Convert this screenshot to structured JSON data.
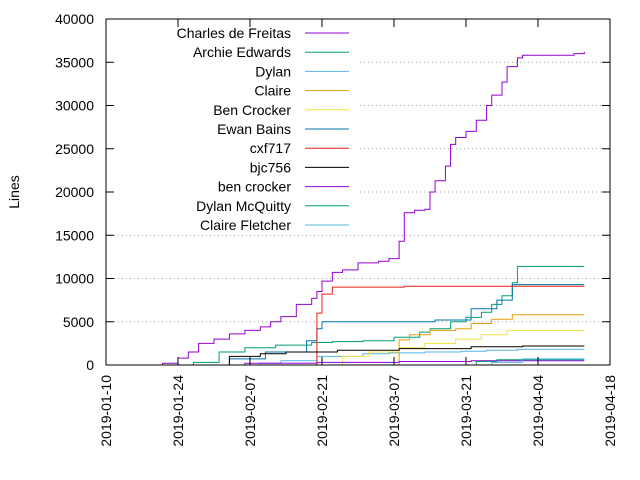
{
  "chart_data": {
    "type": "line",
    "step": true,
    "ylabel": "Lines",
    "xlabel": "",
    "ylim": [
      0,
      40000
    ],
    "xlim": [
      "2019-01-10",
      "2019-04-18"
    ],
    "y_ticks": [
      0,
      5000,
      10000,
      15000,
      20000,
      25000,
      30000,
      35000,
      40000
    ],
    "x_ticks": [
      "2019-01-10",
      "2019-01-24",
      "2019-02-07",
      "2019-02-21",
      "2019-03-07",
      "2019-03-21",
      "2019-04-04",
      "2019-04-18"
    ],
    "grid": "horizontal-dotted",
    "legend_position": "top-left",
    "series": [
      {
        "name": "Charles de Freitas",
        "color": "#9400d3",
        "points": [
          [
            "2019-01-18",
            0
          ],
          [
            "2019-01-21",
            200
          ],
          [
            "2019-01-24",
            800
          ],
          [
            "2019-01-26",
            1500
          ],
          [
            "2019-01-28",
            2500
          ],
          [
            "2019-01-31",
            3000
          ],
          [
            "2019-02-03",
            3600
          ],
          [
            "2019-02-06",
            4000
          ],
          [
            "2019-02-09",
            4400
          ],
          [
            "2019-02-11",
            5000
          ],
          [
            "2019-02-13",
            5600
          ],
          [
            "2019-02-16",
            7000
          ],
          [
            "2019-02-19",
            7700
          ],
          [
            "2019-02-20",
            8500
          ],
          [
            "2019-02-21",
            9700
          ],
          [
            "2019-02-23",
            10700
          ],
          [
            "2019-02-25",
            11000
          ],
          [
            "2019-02-28",
            11800
          ],
          [
            "2019-03-04",
            12000
          ],
          [
            "2019-03-06",
            12300
          ],
          [
            "2019-03-08",
            14300
          ],
          [
            "2019-03-09",
            17600
          ],
          [
            "2019-03-11",
            17900
          ],
          [
            "2019-03-13",
            18000
          ],
          [
            "2019-03-14",
            20000
          ],
          [
            "2019-03-15",
            21300
          ],
          [
            "2019-03-17",
            23000
          ],
          [
            "2019-03-18",
            25500
          ],
          [
            "2019-03-19",
            26300
          ],
          [
            "2019-03-21",
            27000
          ],
          [
            "2019-03-23",
            28300
          ],
          [
            "2019-03-25",
            30000
          ],
          [
            "2019-03-26",
            31200
          ],
          [
            "2019-03-28",
            32700
          ],
          [
            "2019-03-29",
            34500
          ],
          [
            "2019-03-31",
            35500
          ],
          [
            "2019-04-01",
            35800
          ],
          [
            "2019-04-11",
            36000
          ],
          [
            "2019-04-13",
            36200
          ]
        ]
      },
      {
        "name": "Archie Edwards",
        "color": "#009e73",
        "points": [
          [
            "2019-01-24",
            0
          ],
          [
            "2019-01-27",
            300
          ],
          [
            "2019-02-01",
            1500
          ],
          [
            "2019-02-06",
            2000
          ],
          [
            "2019-02-12",
            2300
          ],
          [
            "2019-02-19",
            2600
          ],
          [
            "2019-02-23",
            2700
          ],
          [
            "2019-03-01",
            2800
          ],
          [
            "2019-03-07",
            3200
          ],
          [
            "2019-03-12",
            3800
          ],
          [
            "2019-03-14",
            4200
          ],
          [
            "2019-03-18",
            5000
          ],
          [
            "2019-03-21",
            5500
          ],
          [
            "2019-03-24",
            6100
          ],
          [
            "2019-03-26",
            7000
          ],
          [
            "2019-03-28",
            8000
          ],
          [
            "2019-03-30",
            9500
          ],
          [
            "2019-03-31",
            11400
          ],
          [
            "2019-04-13",
            11400
          ]
        ]
      },
      {
        "name": "Dylan",
        "color": "#56b4e9",
        "points": [
          [
            "2019-02-04",
            0
          ],
          [
            "2019-02-09",
            200
          ],
          [
            "2019-02-13",
            500
          ],
          [
            "2019-02-20",
            1000
          ],
          [
            "2019-03-01",
            1300
          ],
          [
            "2019-03-06",
            1400
          ],
          [
            "2019-03-13",
            1500
          ],
          [
            "2019-03-20",
            1600
          ],
          [
            "2019-03-25",
            1700
          ],
          [
            "2019-03-31",
            1800
          ],
          [
            "2019-04-13",
            1800
          ]
        ]
      },
      {
        "name": "Claire",
        "color": "#e69f00",
        "points": [
          [
            "2019-03-07",
            0
          ],
          [
            "2019-03-08",
            2900
          ],
          [
            "2019-03-10",
            3500
          ],
          [
            "2019-03-14",
            4000
          ],
          [
            "2019-03-19",
            4200
          ],
          [
            "2019-03-22",
            4800
          ],
          [
            "2019-03-26",
            5300
          ],
          [
            "2019-03-30",
            5800
          ],
          [
            "2019-04-13",
            5800
          ]
        ]
      },
      {
        "name": "Ben Crocker",
        "color": "#f0e442",
        "points": [
          [
            "2019-02-20",
            0
          ],
          [
            "2019-02-25",
            1000
          ],
          [
            "2019-03-02",
            1500
          ],
          [
            "2019-03-08",
            2000
          ],
          [
            "2019-03-13",
            2500
          ],
          [
            "2019-03-19",
            3000
          ],
          [
            "2019-03-24",
            3500
          ],
          [
            "2019-03-29",
            4000
          ],
          [
            "2019-04-13",
            4000
          ]
        ]
      },
      {
        "name": "Ewan Bains",
        "color": "#0072b2",
        "points": [
          [
            "2019-01-28",
            0
          ],
          [
            "2019-02-03",
            700
          ],
          [
            "2019-02-10",
            1500
          ],
          [
            "2019-02-18",
            2800
          ],
          [
            "2019-02-20",
            4200
          ],
          [
            "2019-02-21",
            5000
          ],
          [
            "2019-03-09",
            5000
          ],
          [
            "2019-03-15",
            5200
          ],
          [
            "2019-03-22",
            6500
          ],
          [
            "2019-03-27",
            7500
          ],
          [
            "2019-03-30",
            9300
          ],
          [
            "2019-04-13",
            9300
          ]
        ]
      },
      {
        "name": "cxf717",
        "color": "#e51e10",
        "points": [
          [
            "2019-02-19",
            0
          ],
          [
            "2019-02-20",
            6000
          ],
          [
            "2019-02-21",
            8200
          ],
          [
            "2019-02-23",
            9000
          ],
          [
            "2019-03-09",
            9100
          ],
          [
            "2019-03-31",
            9100
          ],
          [
            "2019-04-13",
            9100
          ]
        ]
      },
      {
        "name": "bjc756",
        "color": "#000000",
        "points": [
          [
            "2019-02-01",
            0
          ],
          [
            "2019-02-03",
            1000
          ],
          [
            "2019-02-09",
            1300
          ],
          [
            "2019-02-14",
            1500
          ],
          [
            "2019-02-24",
            1700
          ],
          [
            "2019-03-08",
            1900
          ],
          [
            "2019-03-22",
            2100
          ],
          [
            "2019-04-01",
            2200
          ],
          [
            "2019-04-13",
            2200
          ]
        ]
      },
      {
        "name": "ben crocker",
        "color": "#9400d3",
        "points": [
          [
            "2019-01-25",
            0
          ],
          [
            "2019-02-06",
            200
          ],
          [
            "2019-02-20",
            300
          ],
          [
            "2019-03-08",
            400
          ],
          [
            "2019-03-22",
            500
          ],
          [
            "2019-04-13",
            500
          ]
        ]
      },
      {
        "name": "Dylan McQuitty",
        "color": "#009e73",
        "points": [
          [
            "2019-03-20",
            0
          ],
          [
            "2019-03-23",
            400
          ],
          [
            "2019-03-27",
            600
          ],
          [
            "2019-04-13",
            600
          ]
        ]
      },
      {
        "name": "Claire Fletcher",
        "color": "#56b4e9",
        "points": [
          [
            "2019-03-22",
            0
          ],
          [
            "2019-03-26",
            300
          ],
          [
            "2019-04-01",
            700
          ],
          [
            "2019-04-13",
            700
          ]
        ]
      }
    ]
  }
}
